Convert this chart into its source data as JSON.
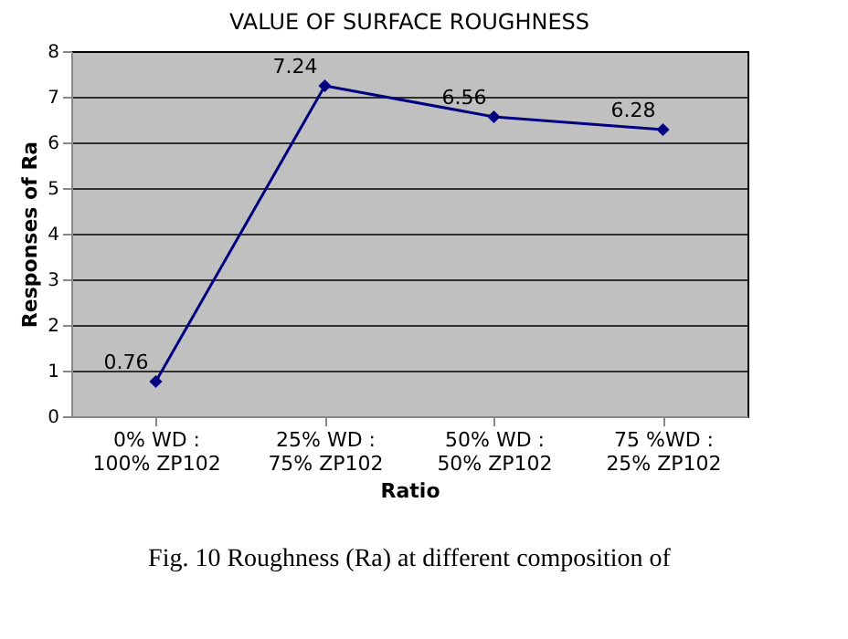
{
  "chart_data": {
    "type": "line",
    "title": "VALUE OF SURFACE ROUGHNESS",
    "xlabel": "Ratio",
    "ylabel": "Responses of Ra",
    "categories": [
      "0% WD :\n100% ZP102",
      "25% WD :\n75% ZP102",
      "50% WD :\n50% ZP102",
      "75 %WD :\n25% ZP102"
    ],
    "series": [
      {
        "color": "#000080",
        "values": [
          0.76,
          7.24,
          6.56,
          6.28
        ]
      }
    ],
    "ylim": [
      0,
      8
    ],
    "yticks": [
      0,
      1,
      2,
      3,
      4,
      5,
      6,
      7,
      8
    ],
    "grid": "y",
    "marker": "diamond",
    "data_labels": true,
    "annotations": [
      "Fig. 10 Roughness (Ra) at different composition of"
    ]
  }
}
